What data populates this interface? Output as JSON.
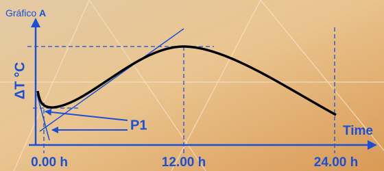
{
  "header": {
    "title": "Gráfico",
    "title_bold": "A"
  },
  "axes": {
    "y_label": "ΔT °C",
    "x_label": "Time",
    "x_ticks": [
      "0.00 h",
      "12.00 h",
      "24.00 h"
    ]
  },
  "annotations": {
    "point": "P1"
  }
}
